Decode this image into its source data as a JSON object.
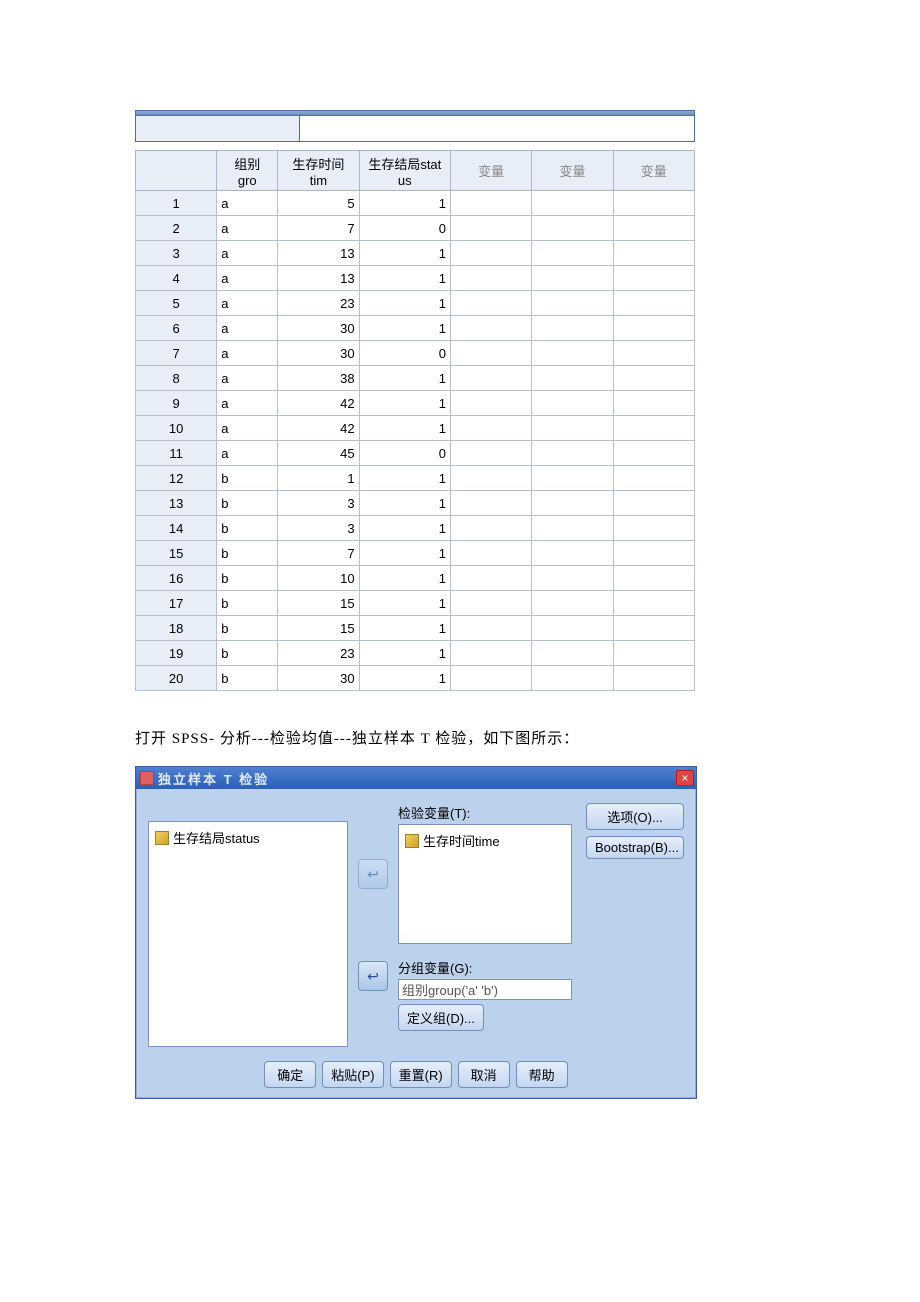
{
  "table": {
    "headers": {
      "gro": "组别\ngro",
      "tim": "生存时间\ntim",
      "status": "生存结局stat\nus",
      "var": "变量"
    },
    "rows": [
      {
        "n": "1",
        "gro": "a",
        "tim": "5",
        "stat": "1"
      },
      {
        "n": "2",
        "gro": "a",
        "tim": "7",
        "stat": "0"
      },
      {
        "n": "3",
        "gro": "a",
        "tim": "13",
        "stat": "1"
      },
      {
        "n": "4",
        "gro": "a",
        "tim": "13",
        "stat": "1"
      },
      {
        "n": "5",
        "gro": "a",
        "tim": "23",
        "stat": "1"
      },
      {
        "n": "6",
        "gro": "a",
        "tim": "30",
        "stat": "1"
      },
      {
        "n": "7",
        "gro": "a",
        "tim": "30",
        "stat": "0"
      },
      {
        "n": "8",
        "gro": "a",
        "tim": "38",
        "stat": "1"
      },
      {
        "n": "9",
        "gro": "a",
        "tim": "42",
        "stat": "1"
      },
      {
        "n": "10",
        "gro": "a",
        "tim": "42",
        "stat": "1"
      },
      {
        "n": "11",
        "gro": "a",
        "tim": "45",
        "stat": "0"
      },
      {
        "n": "12",
        "gro": "b",
        "tim": "1",
        "stat": "1"
      },
      {
        "n": "13",
        "gro": "b",
        "tim": "3",
        "stat": "1"
      },
      {
        "n": "14",
        "gro": "b",
        "tim": "3",
        "stat": "1"
      },
      {
        "n": "15",
        "gro": "b",
        "tim": "7",
        "stat": "1"
      },
      {
        "n": "16",
        "gro": "b",
        "tim": "10",
        "stat": "1"
      },
      {
        "n": "17",
        "gro": "b",
        "tim": "15",
        "stat": "1"
      },
      {
        "n": "18",
        "gro": "b",
        "tim": "15",
        "stat": "1"
      },
      {
        "n": "19",
        "gro": "b",
        "tim": "23",
        "stat": "1"
      },
      {
        "n": "20",
        "gro": "b",
        "tim": "30",
        "stat": "1"
      }
    ]
  },
  "caption": "打开 SPSS- 分析---检验均值---独立样本 T 检验，如下图所示：",
  "dialog": {
    "title": "独立样本 T 检验",
    "close": "×",
    "left_list": {
      "item1": "生存结局status"
    },
    "labels": {
      "testvar": "检验变量(T):",
      "groupvar": "分组变量(G):"
    },
    "test_list": {
      "item1": "生存时间time"
    },
    "group_value": "组别group('a' 'b')",
    "buttons": {
      "define": "定义组(D)...",
      "options": "选项(O)...",
      "bootstrap": "Bootstrap(B)...",
      "ok": "确定",
      "paste": "粘贴(P)",
      "reset": "重置(R)",
      "cancel": "取消",
      "help": "帮助"
    },
    "arrow": "↩"
  }
}
